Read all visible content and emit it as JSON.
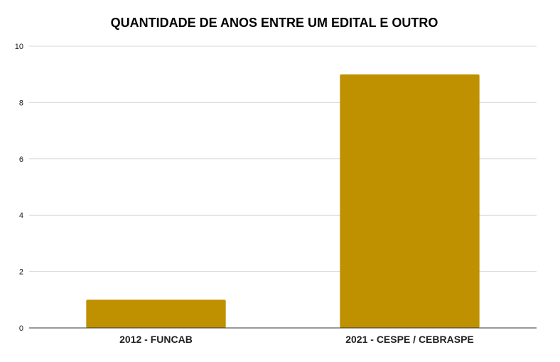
{
  "chart_data": {
    "type": "bar",
    "title": "QUANTIDADE DE ANOS ENTRE UM EDITAL E OUTRO",
    "xlabel": "",
    "ylabel": "",
    "categories": [
      "2012 - FUNCAB",
      "2021 - CESPE / CEBRASPE"
    ],
    "values": [
      1,
      9
    ],
    "ylim": [
      0,
      10
    ],
    "yticks": [
      "0",
      "2",
      "4",
      "6",
      "8",
      "10"
    ],
    "grid": true,
    "legend": "none"
  },
  "colors": {
    "bar": "#bf9000",
    "grid": "#d9d9d9",
    "axis": "#333333"
  }
}
